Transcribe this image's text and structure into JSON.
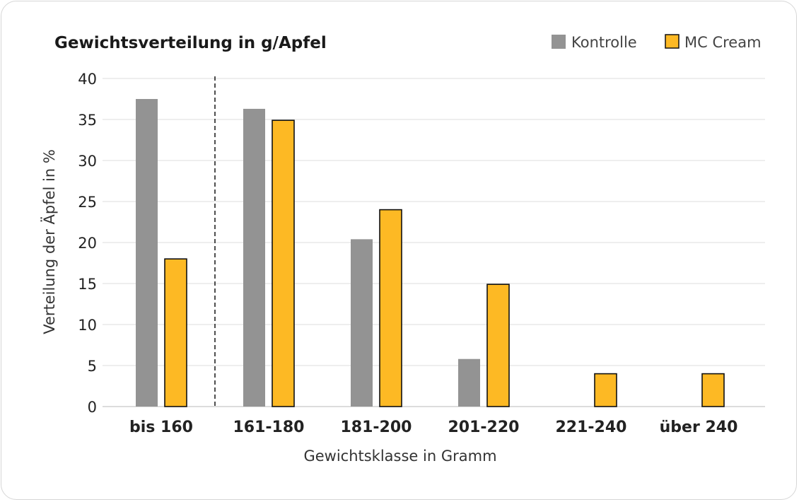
{
  "chart_data": {
    "type": "bar",
    "title": "Gewichtsverteilung in g/Apfel",
    "xlabel": "Gewichtsklasse in Gramm",
    "ylabel": "Verteilung der Äpfel in %",
    "categories": [
      "bis 160",
      "161-180",
      "181-200",
      "201-220",
      "221-240",
      "über 240"
    ],
    "series": [
      {
        "name": "Kontrolle",
        "color": "#939393",
        "values": [
          37.5,
          36.3,
          20.4,
          5.8,
          0,
          0
        ]
      },
      {
        "name": "MC Cream",
        "color": "#fdb924",
        "values": [
          18.0,
          34.9,
          24.0,
          14.9,
          4.0,
          4.0
        ]
      }
    ],
    "ylim": [
      0,
      40
    ],
    "yticks": [
      0,
      5,
      10,
      15,
      20,
      25,
      30,
      35,
      40
    ],
    "grid": true,
    "legend_position": "top-right",
    "divider_after_category": "bis 160"
  }
}
